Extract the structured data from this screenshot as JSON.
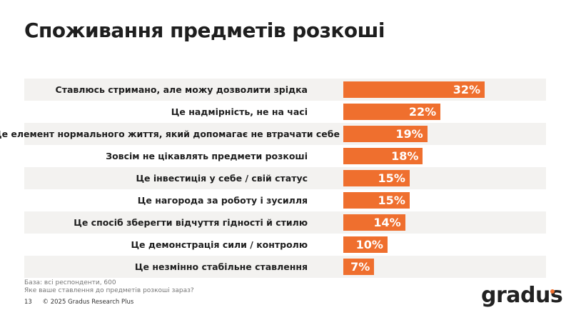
{
  "title": "Споживання предметів розкоші",
  "chart_data": {
    "type": "bar",
    "orientation": "horizontal",
    "categories": [
      "Ставлюсь стримано, але можу дозволити зрідка",
      "Це надмірність, не на часі",
      "Це елемент нормального життя, який допомагає не втрачати себе",
      "Зовсім не цікавлять предмети розкоші",
      "Це інвестиція у себе / свій статус",
      "Це нагорода за роботу і зусилля",
      "Це спосіб зберегти відчуття гідності й стилю",
      "Це демонстрація сили / контролю",
      "Це незмінно стабільне ставлення"
    ],
    "values": [
      32,
      22,
      19,
      18,
      15,
      15,
      14,
      10,
      7
    ],
    "data_labels": [
      "32%",
      "22%",
      "19%",
      "18%",
      "15%",
      "15%",
      "14%",
      "10%",
      "7%"
    ],
    "unit": "%",
    "bar_color": "#ef6f2e",
    "grid": false
  },
  "notes": {
    "base": "База: всі респонденти, 600",
    "question": "Яке ваше ставлення до предметів розкоші зараз?"
  },
  "footer": {
    "page": "13",
    "copyright": "© 2025 Gradus Research Plus"
  },
  "logo": {
    "text": "gradus",
    "accent_color": "#ef6f2e"
  }
}
